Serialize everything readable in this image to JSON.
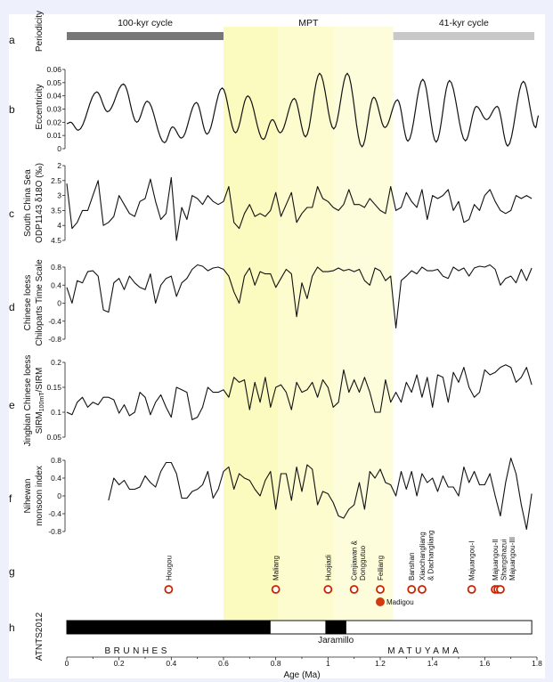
{
  "chart_data": {
    "type": "line",
    "xlabel": "Age (Ma)",
    "xlim": [
      0,
      1.8
    ],
    "xticks": [
      "0",
      "0.2",
      "0.4",
      "0.6",
      "0.8",
      "1",
      "1.2",
      "1.4",
      "1.6",
      "1.8"
    ],
    "mpt_band": {
      "label": "MPT",
      "range": [
        0.6,
        1.25
      ],
      "color": "#fcfcc4"
    },
    "panels": {
      "a": {
        "letter": "a",
        "ylabel": "Periodicity",
        "segments": [
          {
            "label": "100-kyr cycle",
            "range": [
              0,
              0.6
            ],
            "color": "#777777"
          },
          {
            "label": "41-kyr cycle",
            "range": [
              1.25,
              1.79
            ],
            "color": "#c8c8c8"
          }
        ]
      },
      "b": {
        "letter": "b",
        "ylabel": "Eccentricity",
        "ylim": [
          0,
          0.06
        ],
        "yticks": [
          "0",
          "0.01",
          "0.02",
          "0.03",
          "0.04",
          "0.05",
          "0.06"
        ],
        "points": [
          [
            0,
            0.019
          ],
          [
            0.014,
            0.02
          ],
          [
            0.044,
            0.014
          ],
          [
            0.115,
            0.043
          ],
          [
            0.156,
            0.028
          ],
          [
            0.217,
            0.049
          ],
          [
            0.268,
            0.02
          ],
          [
            0.308,
            0.036
          ],
          [
            0.374,
            0.0045
          ],
          [
            0.405,
            0.0165
          ],
          [
            0.439,
            0.008
          ],
          [
            0.496,
            0.035
          ],
          [
            0.537,
            0.011
          ],
          [
            0.595,
            0.046
          ],
          [
            0.646,
            0.012
          ],
          [
            0.693,
            0.04
          ],
          [
            0.752,
            0.007
          ],
          [
            0.787,
            0.022
          ],
          [
            0.817,
            0.012
          ],
          [
            0.871,
            0.038
          ],
          [
            0.914,
            0.009
          ],
          [
            0.968,
            0.057
          ],
          [
            1.022,
            0.015
          ],
          [
            1.074,
            0.057
          ],
          [
            1.13,
            0.0014
          ],
          [
            1.175,
            0.039
          ],
          [
            1.218,
            0.016
          ],
          [
            1.266,
            0.037
          ],
          [
            1.306,
            0.0057
          ],
          [
            1.363,
            0.0525
          ],
          [
            1.414,
            0.005
          ],
          [
            1.465,
            0.0516
          ],
          [
            1.526,
            0.006
          ],
          [
            1.568,
            0.032
          ],
          [
            1.607,
            0.022
          ],
          [
            1.648,
            0.032
          ],
          [
            1.688,
            0.002
          ],
          [
            1.748,
            0.051
          ],
          [
            1.795,
            0.016
          ],
          [
            1.806,
            0.025
          ]
        ]
      },
      "c": {
        "letter": "c",
        "ylabel": [
          "South China Sea",
          "ODP1143  δ18O (‰)"
        ],
        "ylim": [
          2,
          4.5
        ],
        "inverted": true,
        "yticks": [
          "2",
          "2.5",
          "3",
          "3.5",
          "4",
          "4.5"
        ],
        "x_start": 0,
        "x_step": 0.02,
        "values": [
          2.6,
          4.1,
          3.9,
          3.5,
          3.5,
          3.0,
          2.5,
          4.0,
          3.9,
          3.7,
          3.0,
          3.3,
          3.6,
          3.7,
          3.2,
          3.1,
          2.45,
          3.2,
          3.8,
          3.6,
          2.4,
          4.5,
          3.4,
          3.8,
          3.0,
          3.1,
          3.3,
          3.0,
          3.2,
          3.3,
          3.2,
          2.7,
          3.9,
          4.1,
          3.6,
          3.3,
          3.7,
          3.6,
          3.7,
          3.5,
          2.9,
          3.7,
          3.3,
          2.9,
          3.9,
          3.6,
          3.4,
          3.4,
          2.7,
          3.1,
          3.2,
          3.4,
          3.5,
          3.3,
          2.8,
          3.3,
          3.3,
          3.4,
          3.1,
          3.3,
          3.5,
          3.6,
          2.7,
          3.5,
          3.4,
          2.9,
          3.2,
          3.4,
          2.8,
          3.8,
          3.0,
          3.1,
          3.0,
          2.8,
          3.5,
          3.2,
          3.9,
          3.8,
          3.3,
          3.5,
          3.0,
          2.8,
          3.2,
          3.5,
          3.6,
          3.5,
          3.0,
          3.1,
          3.0,
          3.1
        ]
      },
      "d": {
        "letter": "d",
        "ylabel": [
          "Chinese loess",
          "Chiloparts Time Scale"
        ],
        "ylim": [
          -0.8,
          0.8
        ],
        "yticks": [
          "-0.8",
          "-0.4",
          "0",
          "0.4",
          "0.8"
        ],
        "x_start": 0,
        "x_step": 0.02,
        "values": [
          0.35,
          0.0,
          0.5,
          0.45,
          0.7,
          0.72,
          0.6,
          -0.15,
          -0.2,
          0.45,
          0.55,
          0.3,
          0.6,
          0.45,
          0.35,
          0.3,
          0.65,
          0.0,
          0.4,
          0.55,
          0.6,
          0.15,
          0.45,
          0.55,
          0.75,
          0.85,
          0.82,
          0.72,
          0.78,
          0.8,
          0.75,
          0.6,
          0.25,
          0.0,
          0.6,
          0.78,
          0.4,
          0.7,
          0.65,
          0.65,
          0.35,
          0.55,
          0.75,
          0.65,
          -0.3,
          0.45,
          0.1,
          0.6,
          0.8,
          0.7,
          0.7,
          0.72,
          0.78,
          0.72,
          0.75,
          0.7,
          0.75,
          0.5,
          0.4,
          0.78,
          0.72,
          0.5,
          0.6,
          -0.55,
          0.5,
          0.6,
          0.72,
          0.65,
          0.8,
          0.72,
          0.72,
          0.75,
          0.6,
          0.55,
          0.8,
          0.72,
          0.78,
          0.6,
          0.78,
          0.82,
          0.8,
          0.85,
          0.75,
          0.4,
          0.55,
          0.6,
          0.45,
          0.75,
          0.5,
          0.78
        ]
      },
      "e": {
        "letter": "e",
        "ylabel": [
          "Jingbian Chinese loess",
          "SIRM",
          "100mT",
          "/SIRM"
        ],
        "ylim": [
          0.05,
          0.2
        ],
        "yticks": [
          "0.05",
          "0.1",
          "0.15",
          "0.2"
        ],
        "x_start": 0,
        "x_step": 0.02,
        "values": [
          0.1,
          0.095,
          0.12,
          0.13,
          0.11,
          0.12,
          0.115,
          0.13,
          0.13,
          0.125,
          0.098,
          0.115,
          0.093,
          0.1,
          0.14,
          0.13,
          0.095,
          0.12,
          0.135,
          0.11,
          0.09,
          0.15,
          0.145,
          0.14,
          0.085,
          0.09,
          0.11,
          0.15,
          0.14,
          0.14,
          0.145,
          0.13,
          0.17,
          0.16,
          0.165,
          0.105,
          0.16,
          0.12,
          0.17,
          0.11,
          0.15,
          0.155,
          0.14,
          0.105,
          0.16,
          0.14,
          0.145,
          0.16,
          0.13,
          0.165,
          0.15,
          0.11,
          0.12,
          0.185,
          0.14,
          0.165,
          0.14,
          0.17,
          0.14,
          0.1,
          0.1,
          0.165,
          0.12,
          0.14,
          0.12,
          0.16,
          0.14,
          0.175,
          0.13,
          0.17,
          0.11,
          0.175,
          0.17,
          0.12,
          0.18,
          0.16,
          0.19,
          0.15,
          0.13,
          0.14,
          0.185,
          0.175,
          0.18,
          0.19,
          0.195,
          0.19,
          0.16,
          0.17,
          0.19,
          0.155
        ]
      },
      "f": {
        "letter": "f",
        "ylabel": [
          "Nihewan",
          "monsoon index"
        ],
        "ylim": [
          -0.8,
          0.8
        ],
        "yticks": [
          "-0.8",
          "-0.4",
          "0",
          "0.4",
          "0.8"
        ],
        "x_start": 0.16,
        "x_step": 0.02,
        "values": [
          -0.1,
          0.4,
          0.25,
          0.35,
          0.15,
          0.15,
          0.2,
          0.45,
          0.3,
          0.2,
          0.55,
          0.75,
          0.75,
          0.5,
          -0.05,
          -0.05,
          0.1,
          0.15,
          0.25,
          0.55,
          -0.05,
          0.15,
          0.55,
          0.65,
          0.15,
          0.5,
          0.4,
          0.35,
          0.15,
          0.0,
          0.35,
          0.55,
          -0.3,
          0.5,
          0.5,
          -0.1,
          0.65,
          0.1,
          0.7,
          0.6,
          -0.2,
          0.1,
          0.05,
          -0.15,
          -0.45,
          -0.5,
          -0.3,
          -0.2,
          0.3,
          -0.3,
          0.55,
          0.4,
          0.6,
          0.3,
          0.25,
          0.0,
          0.55,
          0.15,
          0.55,
          0.0,
          0.5,
          0.3,
          0.4,
          0.1,
          0.45,
          0.2,
          0.2,
          0.0,
          0.65,
          0.3,
          0.55,
          0.25,
          0.25,
          0.5,
          0.0,
          -0.45,
          0.3,
          0.85,
          0.5,
          -0.2,
          -0.75,
          0.05
        ]
      },
      "g": {
        "letter": "g",
        "site_color": "#cc2200",
        "sites": [
          {
            "name": [
              "Hougou"
            ],
            "age": 0.39
          },
          {
            "name": [
              "Maliang"
            ],
            "age": 0.8
          },
          {
            "name": [
              "Huojiadi"
            ],
            "age": 1.0
          },
          {
            "name": [
              "Cenjiawan &",
              "Donggutuo"
            ],
            "age": 1.1
          },
          {
            "name": [
              "Feiliang"
            ],
            "age": 1.2
          },
          {
            "name": [
              "Banshan"
            ],
            "age": 1.32
          },
          {
            "name": [
              "Xiaochangliang",
              "& Dachangliang"
            ],
            "age": 1.36
          },
          {
            "name": [
              "Majuangou-I"
            ],
            "age": 1.55
          },
          {
            "name": [
              "Majuangou-II"
            ],
            "age": 1.64
          },
          {
            "name": [
              "Shangshazui"
            ],
            "age": 1.65
          },
          {
            "name": [
              "Majuangou-III"
            ],
            "age": 1.66
          }
        ],
        "filled_site": {
          "name": "Madigou",
          "age": 1.2
        }
      },
      "h": {
        "letter": "h",
        "ylabel": "ATNTS2012",
        "normal": [
          [
            0,
            0.78
          ],
          [
            0.99,
            1.07
          ]
        ],
        "end": 1.78,
        "subchron": {
          "label": "Jaramillo",
          "age": 1.03
        },
        "chrons": [
          {
            "label": "BRUNHES",
            "age": 0.27
          },
          {
            "label": "MATUYAMA",
            "age": 1.37
          }
        ]
      }
    }
  }
}
